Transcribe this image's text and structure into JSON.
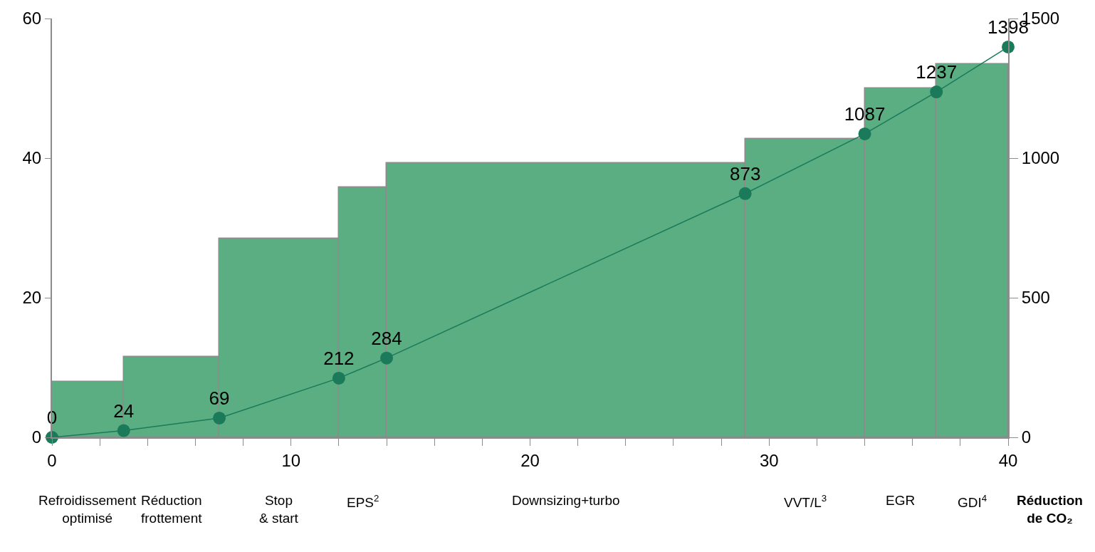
{
  "chart_data": {
    "type": "histogram",
    "bins": [
      0,
      3,
      7,
      12,
      14,
      29,
      34,
      37,
      40
    ],
    "values": [
      8,
      11.5,
      28.5,
      35.8,
      39.3,
      42.8,
      50,
      53.5
    ],
    "color": "#5aae82",
    "series": [
      {
        "type": "line",
        "axis": "y2",
        "color": "#1a7a5a",
        "x": [
          0,
          3,
          7,
          12,
          14,
          29,
          34,
          37,
          40
        ],
        "values": [
          0,
          24,
          69,
          212,
          284,
          873,
          1087,
          1237,
          1398
        ],
        "value_labels": [
          "0",
          "24",
          "69",
          "212",
          "284",
          "873",
          "1087",
          "1237",
          "1398"
        ]
      }
    ],
    "marker": "circle",
    "xlabel": "Réduction\nde CO₂",
    "annotations": [
      "Refroidissement\noptimisé",
      "Réduction\nfrottement",
      "Stop\n& start",
      "EPS$^{2}$",
      "Downsizing+turbo",
      "VVT/L$^{3}$",
      "EGR",
      "GDI$^{4}$"
    ],
    "xlim": [
      0,
      40
    ],
    "xticks": [
      0,
      {
        "value": 2,
        "label": null
      },
      {
        "value": 4,
        "label": null
      },
      {
        "value": 6,
        "label": null
      },
      {
        "value": 8,
        "label": null
      },
      10,
      {
        "value": 12,
        "label": null
      },
      {
        "value": 14,
        "label": null
      },
      {
        "value": 16,
        "label": null
      },
      {
        "value": 18,
        "label": null
      },
      20,
      {
        "value": 22,
        "label": null
      },
      {
        "value": 24,
        "label": null
      },
      {
        "value": 26,
        "label": null
      },
      {
        "value": 28,
        "label": null
      },
      30,
      {
        "value": 32,
        "label": null
      },
      {
        "value": 34,
        "label": null
      },
      {
        "value": 36,
        "label": null
      },
      {
        "value": 38,
        "label": null
      },
      40
    ],
    "ylim": [
      0,
      60
    ],
    "yticks": [
      0,
      20,
      40,
      60
    ],
    "y2lim": [
      0,
      1500
    ],
    "y2ticks": [
      0,
      500,
      1000,
      1500
    ],
    "grid": false
  }
}
